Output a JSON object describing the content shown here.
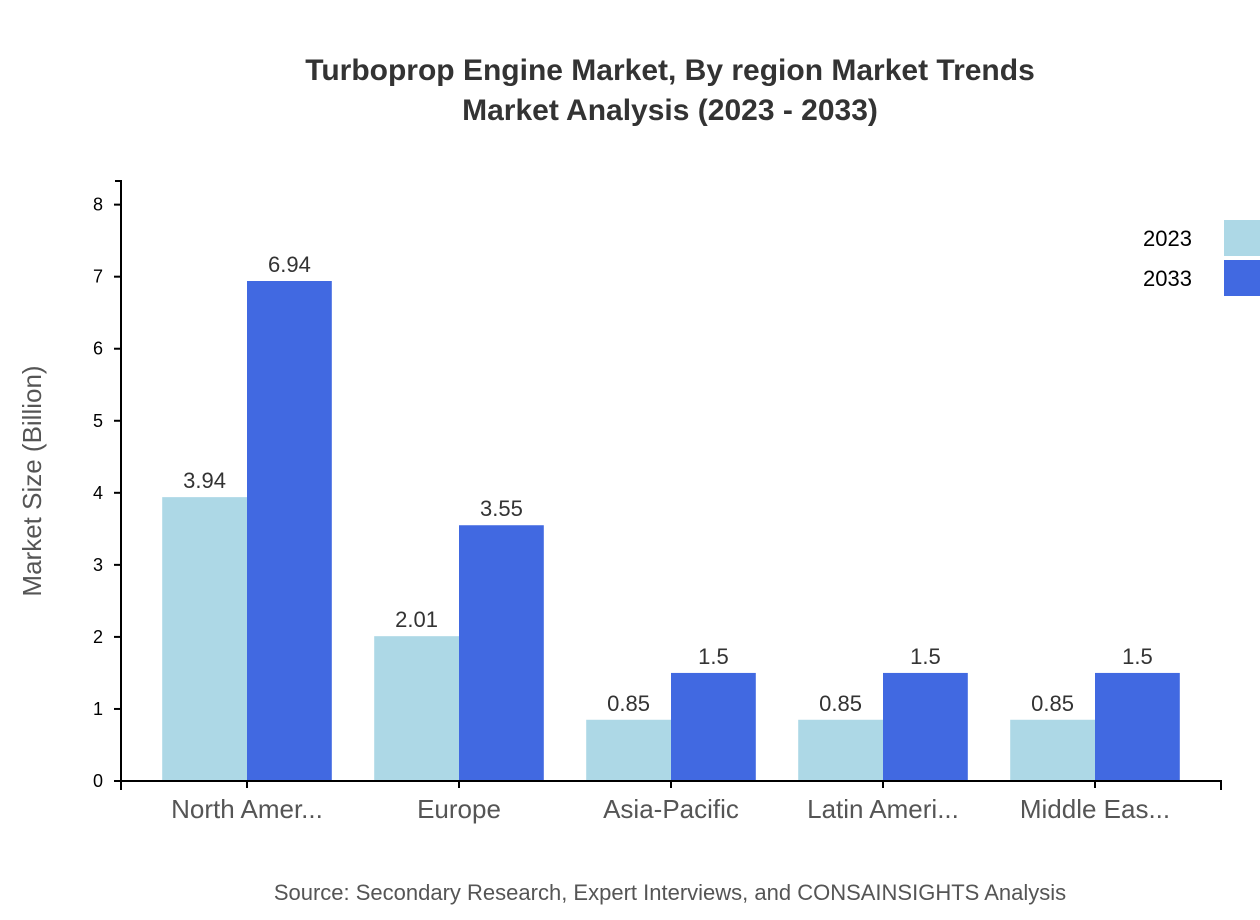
{
  "chart_data": {
    "type": "bar",
    "title": [
      "Turboprop Engine Market, By region Market Trends",
      "Market Analysis (2023 - 2033)"
    ],
    "xlabel": "",
    "ylabel": "Market Size (Billion)",
    "categories": [
      "North Amer...",
      "Europe",
      "Asia-Pacific",
      "Latin Ameri...",
      "Middle Eas..."
    ],
    "series": [
      {
        "name": "2023",
        "color": "#add8e6",
        "values": [
          3.94,
          2.01,
          0.85,
          0.85,
          0.85
        ]
      },
      {
        "name": "2033",
        "color": "#4169e1",
        "values": [
          6.94,
          3.55,
          1.5,
          1.5,
          1.5
        ]
      }
    ],
    "ylim": [
      0,
      8.328
    ],
    "yticks": [
      0,
      1,
      2,
      3,
      4,
      5,
      6,
      7,
      8
    ],
    "grid": false,
    "legend": "top-right",
    "source": "Source: Secondary Research, Expert Interviews, and CONSAINSIGHTS Analysis"
  }
}
